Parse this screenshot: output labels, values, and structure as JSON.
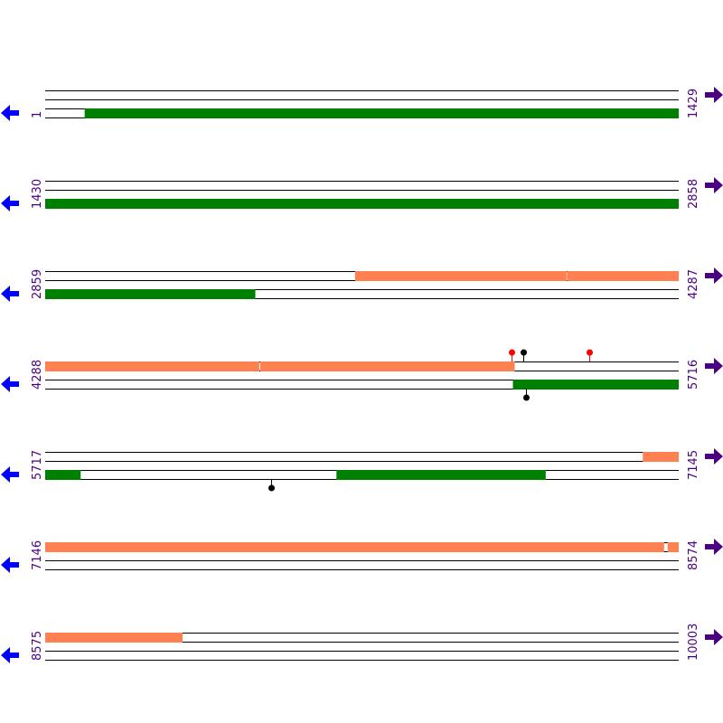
{
  "colors": {
    "line": "#000000",
    "forward_feature": "#ff8050",
    "reverse_feature": "#008000",
    "label": "#4b0082",
    "left_arrow": "#0000ff",
    "right_arrow": "#4b0082",
    "marker_red": "#ff0000",
    "marker_black": "#000000"
  },
  "icons": {
    "left": "arrow-left-icon",
    "right": "arrow-right-icon"
  },
  "sequence_length": 10003,
  "rows": [
    {
      "start_label": "1",
      "end_label": "1429",
      "start": 1,
      "end": 1429,
      "forward": [],
      "reverse": [
        {
          "from": 90,
          "to": 1429
        }
      ],
      "markers": []
    },
    {
      "start_label": "1430",
      "end_label": "2858",
      "start": 1430,
      "end": 2858,
      "forward": [],
      "reverse": [
        {
          "from": 1430,
          "to": 2858
        }
      ],
      "markers": []
    },
    {
      "start_label": "2859",
      "end_label": "4287",
      "start": 2859,
      "end": 4287,
      "forward": [
        {
          "from": 3558,
          "to": 4034
        },
        {
          "from": 4036,
          "to": 4287
        }
      ],
      "reverse": [
        {
          "from": 2859,
          "to": 3332
        }
      ],
      "markers": []
    },
    {
      "start_label": "4288",
      "end_label": "5716",
      "start": 4288,
      "end": 5716,
      "forward": [
        {
          "from": 4288,
          "to": 4770
        },
        {
          "from": 4773,
          "to": 5346
        }
      ],
      "reverse": [
        {
          "from": 5343,
          "to": 5716
        }
      ],
      "markers": [
        {
          "pos": 5340,
          "side": "top",
          "color": "red"
        },
        {
          "pos": 5367,
          "side": "top",
          "color": "black"
        },
        {
          "pos": 5515,
          "side": "top",
          "color": "red"
        },
        {
          "pos": 5372,
          "side": "bottom",
          "color": "black"
        }
      ]
    },
    {
      "start_label": "5717",
      "end_label": "7145",
      "start": 5717,
      "end": 7145,
      "forward": [
        {
          "from": 7065,
          "to": 7145
        }
      ],
      "reverse": [
        {
          "from": 5717,
          "to": 5796
        },
        {
          "from": 6374,
          "to": 6845
        }
      ],
      "markers": [
        {
          "pos": 6226,
          "side": "bottom",
          "color": "black"
        }
      ]
    },
    {
      "start_label": "7146",
      "end_label": "8574",
      "start": 7146,
      "end": 8574,
      "forward": [
        {
          "from": 7146,
          "to": 8541
        },
        {
          "from": 8550,
          "to": 8574
        }
      ],
      "reverse": [],
      "markers": []
    },
    {
      "start_label": "8575",
      "end_label": "10003",
      "start": 8575,
      "end": 10003,
      "forward": [
        {
          "from": 8575,
          "to": 8884
        }
      ],
      "reverse": [],
      "markers": []
    }
  ]
}
